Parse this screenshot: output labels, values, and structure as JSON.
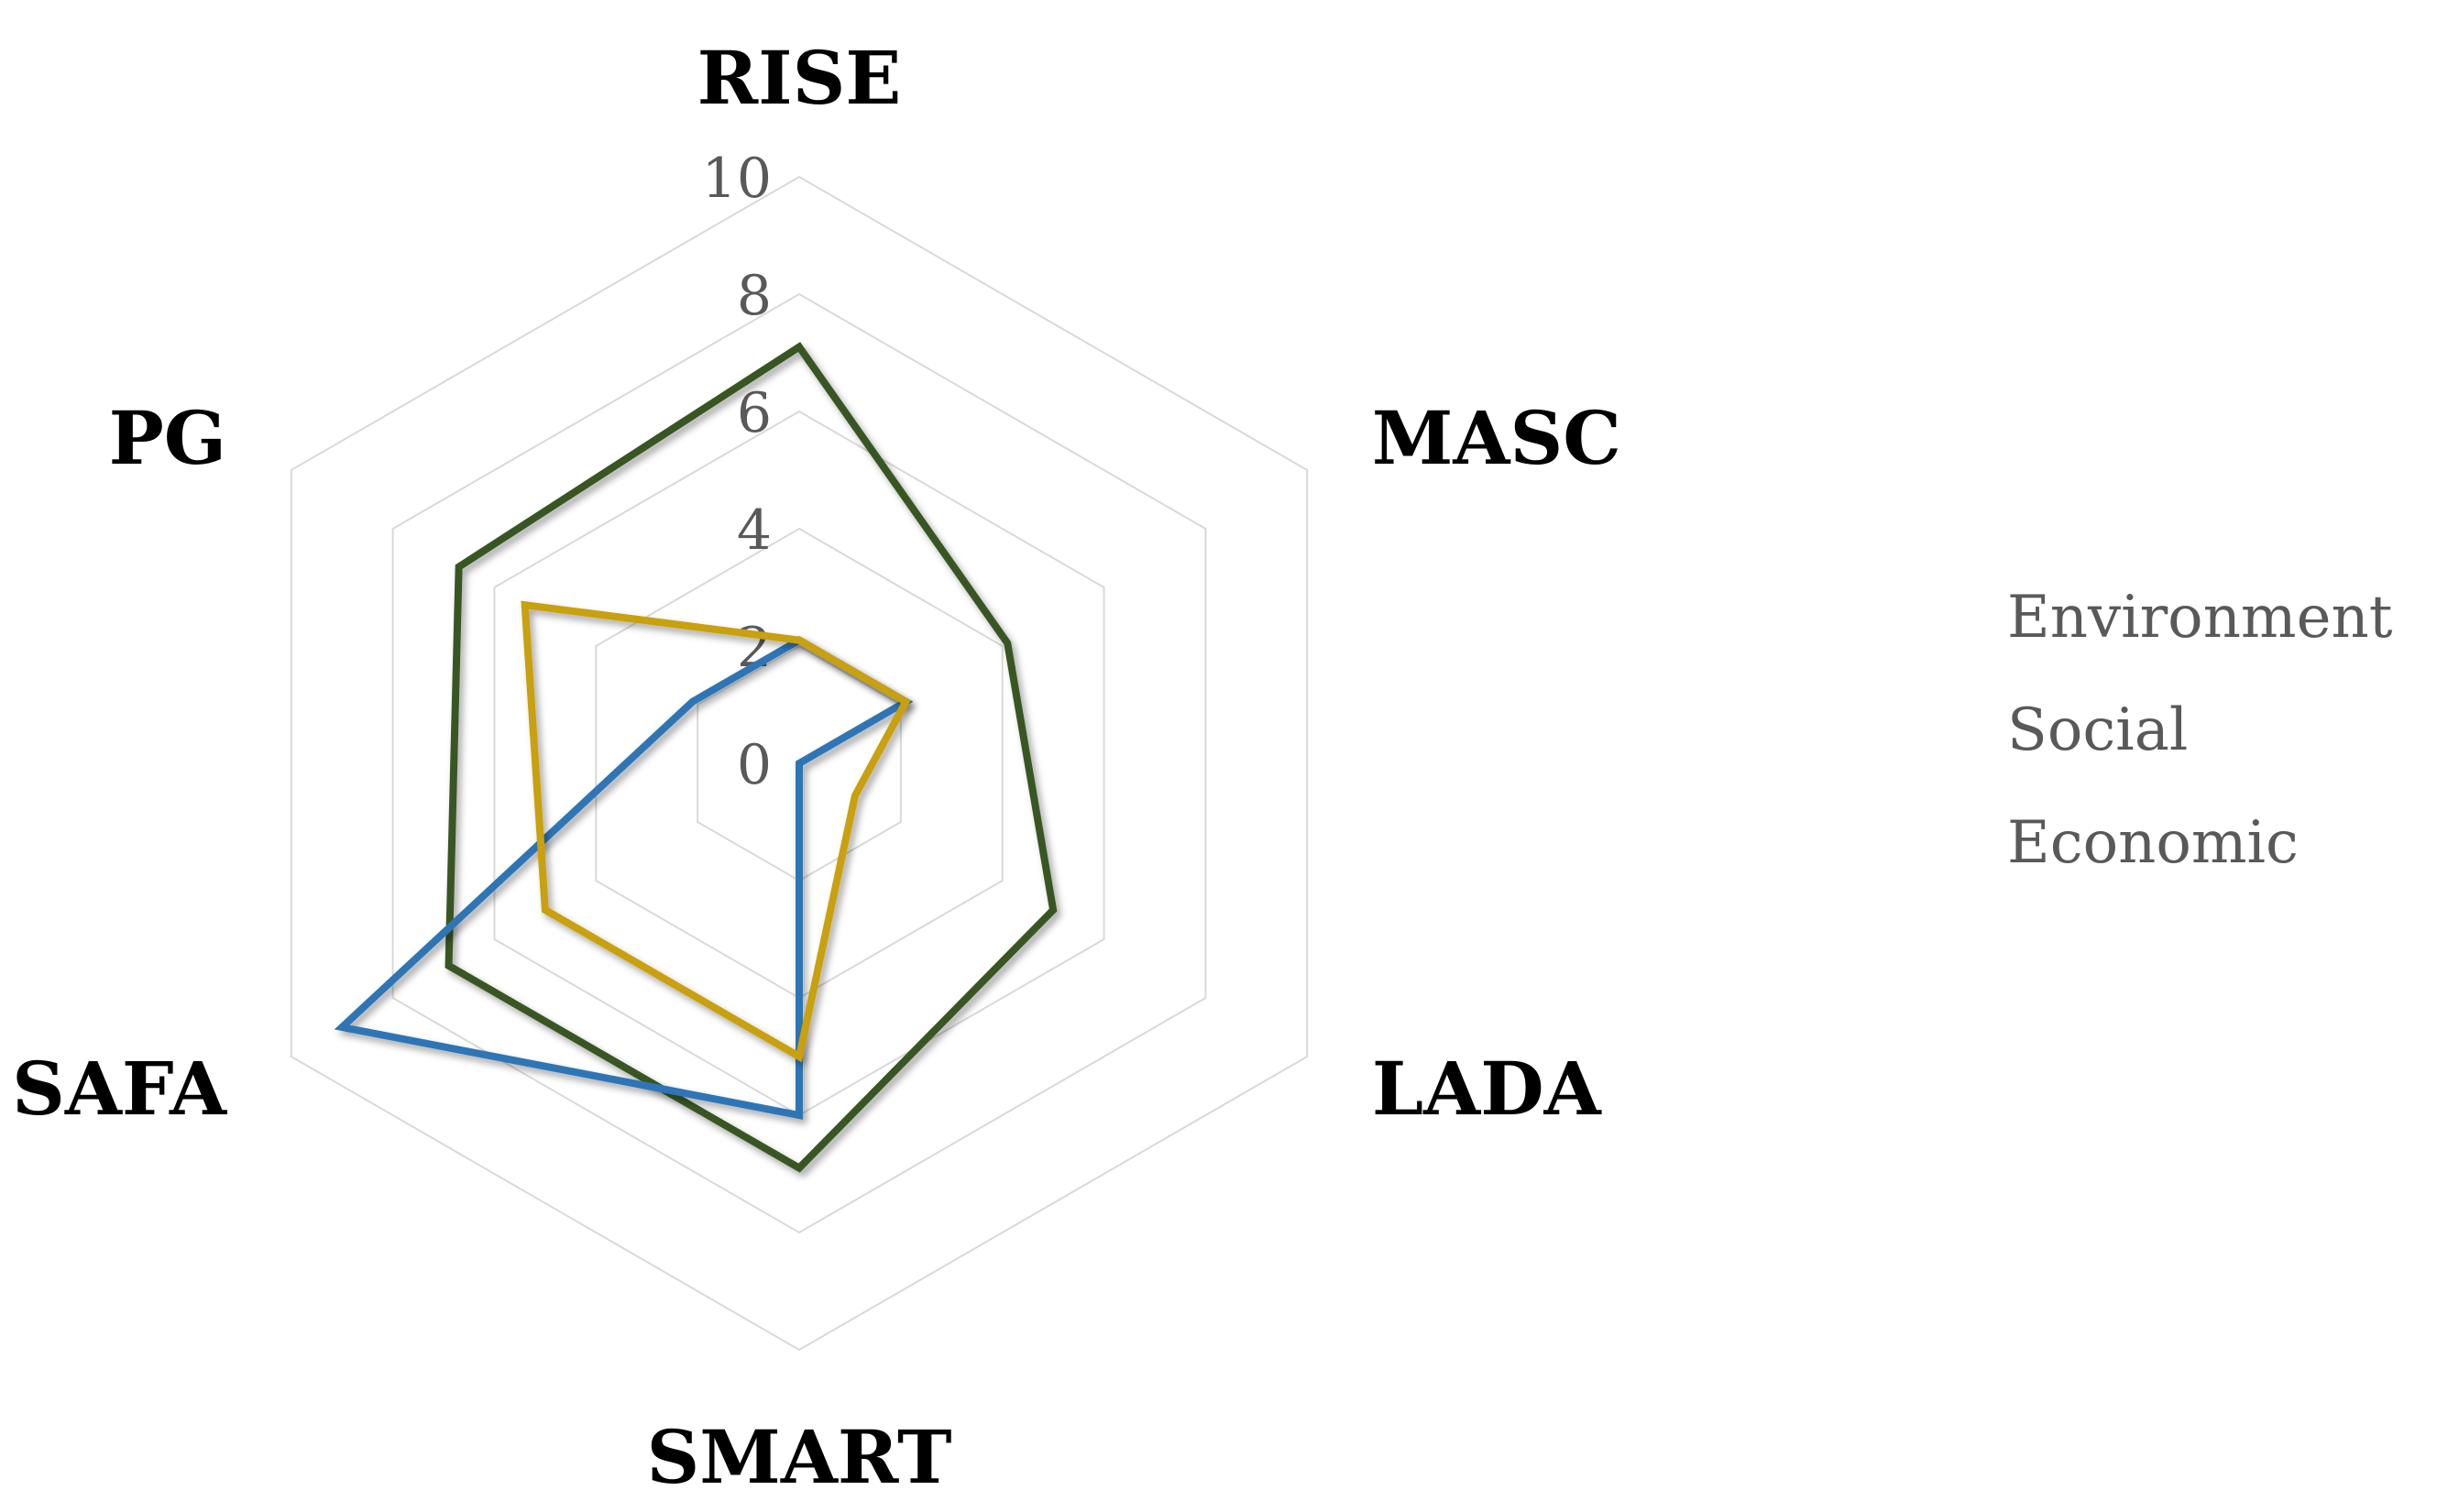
{
  "chart_data": {
    "type": "radar",
    "categories": [
      "RISE",
      "MASC",
      "LADA",
      "SMART",
      "SAFA",
      "PG"
    ],
    "rlim": [
      0,
      10
    ],
    "ticks": [
      "0",
      "2",
      "4",
      "6",
      "8",
      "10"
    ],
    "grid": true,
    "legend_position": "right",
    "series": [
      {
        "name": "Environment",
        "color": "#375623",
        "values": [
          7.1,
          4.1,
          5.0,
          6.9,
          6.9,
          6.7
        ]
      },
      {
        "name": "Social",
        "color": "#2E75B6",
        "values": [
          2.1,
          2.1,
          0.0,
          6.0,
          9.0,
          2.1
        ]
      },
      {
        "name": "Economic",
        "color": "#C9A009",
        "values": [
          2.1,
          2.1,
          1.1,
          5.0,
          5.0,
          5.4
        ]
      }
    ]
  }
}
